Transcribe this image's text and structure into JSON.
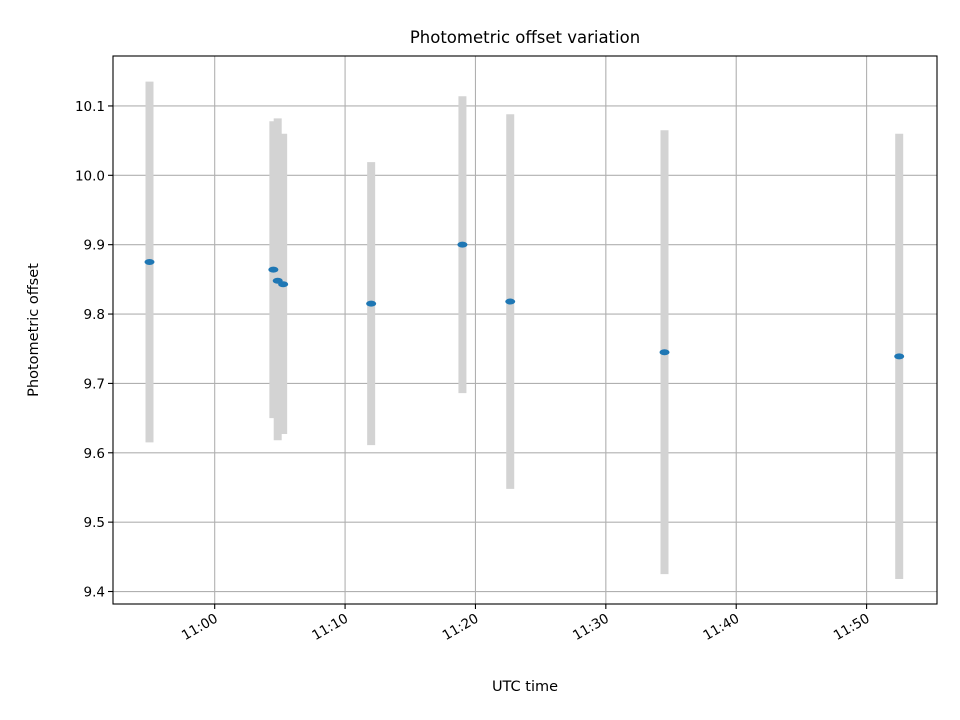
{
  "chart_data": {
    "type": "scatter",
    "title": "Photometric offset variation",
    "xlabel": "UTC time",
    "ylabel": "Photometric offset",
    "x_tick_labels": [
      "11:00",
      "11:10",
      "11:20",
      "11:30",
      "11:40",
      "11:50"
    ],
    "x_tick_minutes": [
      0,
      10,
      20,
      30,
      40,
      50
    ],
    "y_ticks": [
      9.4,
      9.5,
      9.6,
      9.7,
      9.8,
      9.9,
      10.0,
      10.1
    ],
    "y_tick_labels": [
      "9.4",
      "9.5",
      "9.6",
      "9.7",
      "9.8",
      "9.9",
      "10.0",
      "10.1"
    ],
    "xlim_minutes": [
      -7.8,
      55.4
    ],
    "ylim": [
      9.382,
      10.172
    ],
    "grid": true,
    "colors": {
      "marker": "#1f77b4",
      "errorbar": "#d3d3d3",
      "grid": "#b0b0b0",
      "axes": "#000000"
    },
    "series": [
      {
        "points": [
          {
            "time": "10:55:00",
            "y": 9.875,
            "ylo": 9.615,
            "yhi": 10.135
          },
          {
            "time": "11:04:30",
            "y": 9.864,
            "ylo": 9.65,
            "yhi": 10.078
          },
          {
            "time": "11:04:50",
            "y": 9.848,
            "ylo": 9.618,
            "yhi": 10.082
          },
          {
            "time": "11:05:15",
            "y": 9.843,
            "ylo": 9.627,
            "yhi": 10.06
          },
          {
            "time": "11:12:00",
            "y": 9.815,
            "ylo": 9.611,
            "yhi": 10.019
          },
          {
            "time": "11:19:00",
            "y": 9.9,
            "ylo": 9.686,
            "yhi": 10.114
          },
          {
            "time": "11:22:40",
            "y": 9.818,
            "ylo": 9.548,
            "yhi": 10.088
          },
          {
            "time": "11:34:30",
            "y": 9.745,
            "ylo": 9.425,
            "yhi": 10.065
          },
          {
            "time": "11:52:30",
            "y": 9.739,
            "ylo": 9.418,
            "yhi": 10.06
          }
        ]
      }
    ]
  }
}
